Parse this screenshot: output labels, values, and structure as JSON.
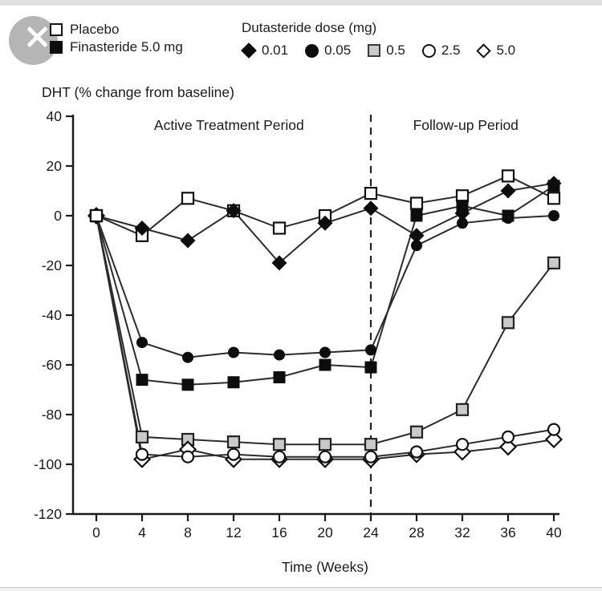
{
  "page": {
    "top_bar_color": "#e0e0e0",
    "bottom_bar_color": "#efefef",
    "background": "#ffffff"
  },
  "close_button": {
    "icon": "close-x",
    "circle_color": "#b5b5b5",
    "x_color": "#ffffff"
  },
  "legend": {
    "left_items": [
      {
        "marker": "open-square",
        "label": "Placebo"
      },
      {
        "marker": "filled-square",
        "label": "Finasteride 5.0 mg"
      }
    ],
    "dutasteride_title": "Dutasteride dose (mg)",
    "dose_items": [
      {
        "marker": "filled-diamond",
        "label": "0.01"
      },
      {
        "marker": "filled-circle",
        "label": "0.05"
      },
      {
        "marker": "gray-square",
        "label": "0.5"
      },
      {
        "marker": "open-circle",
        "label": "2.5"
      },
      {
        "marker": "open-diamond",
        "label": "5.0"
      }
    ]
  },
  "chart_data": {
    "type": "line",
    "title": "DHT (% change from baseline)",
    "xlabel": "Time (Weeks)",
    "ylabel": "DHT (% change from baseline)",
    "x": [
      0,
      4,
      8,
      12,
      16,
      20,
      24,
      28,
      32,
      36,
      40
    ],
    "x_ticks": [
      0,
      4,
      8,
      12,
      16,
      20,
      24,
      28,
      32,
      36,
      40
    ],
    "y_ticks": [
      40,
      20,
      0,
      -20,
      -40,
      -60,
      -80,
      -100,
      -120
    ],
    "xlim": [
      0,
      40
    ],
    "ylim": [
      -120,
      40
    ],
    "grid": false,
    "divider_week": 24,
    "annotations": [
      {
        "text": "Active Treatment Period",
        "week_center": 11.6,
        "y_value": 34.5
      },
      {
        "text": "Follow-up Period",
        "week_center": 32.3,
        "y_value": 34.5
      }
    ],
    "line_color": "#2b2b2b",
    "series": [
      {
        "name": "Placebo",
        "marker": "open-square",
        "values": [
          0,
          -8,
          7,
          2,
          -5,
          0,
          9,
          5,
          8,
          16,
          7
        ]
      },
      {
        "name": "Finasteride 5.0 mg",
        "marker": "filled-square",
        "values": [
          0,
          -66,
          -68,
          -67,
          -65,
          -60,
          -61,
          0,
          4,
          0,
          12
        ]
      },
      {
        "name": "Dutasteride 0.01 mg",
        "marker": "filled-diamond",
        "values": [
          0,
          -5,
          -10,
          2,
          -19,
          -3,
          3,
          -8,
          1,
          10,
          13
        ]
      },
      {
        "name": "Dutasteride 0.05 mg",
        "marker": "filled-circle",
        "values": [
          0,
          -51,
          -57,
          -55,
          -56,
          -55,
          -54,
          -12,
          -3,
          -1,
          0
        ]
      },
      {
        "name": "Dutasteride 0.5 mg",
        "marker": "gray-square",
        "values": [
          0,
          -89,
          -90,
          -91,
          -92,
          -92,
          -92,
          -87,
          -78,
          -43,
          -19
        ]
      },
      {
        "name": "Dutasteride 2.5 mg",
        "marker": "open-circle",
        "values": [
          0,
          -96,
          -97,
          -96,
          -97,
          -97,
          -97,
          -95,
          -92,
          -89,
          -86
        ]
      },
      {
        "name": "Dutasteride 5.0 mg",
        "marker": "open-diamond",
        "values": [
          0,
          -98,
          -94,
          -98,
          -98,
          -98,
          -98,
          -96,
          -95,
          -93,
          -90
        ]
      }
    ]
  }
}
